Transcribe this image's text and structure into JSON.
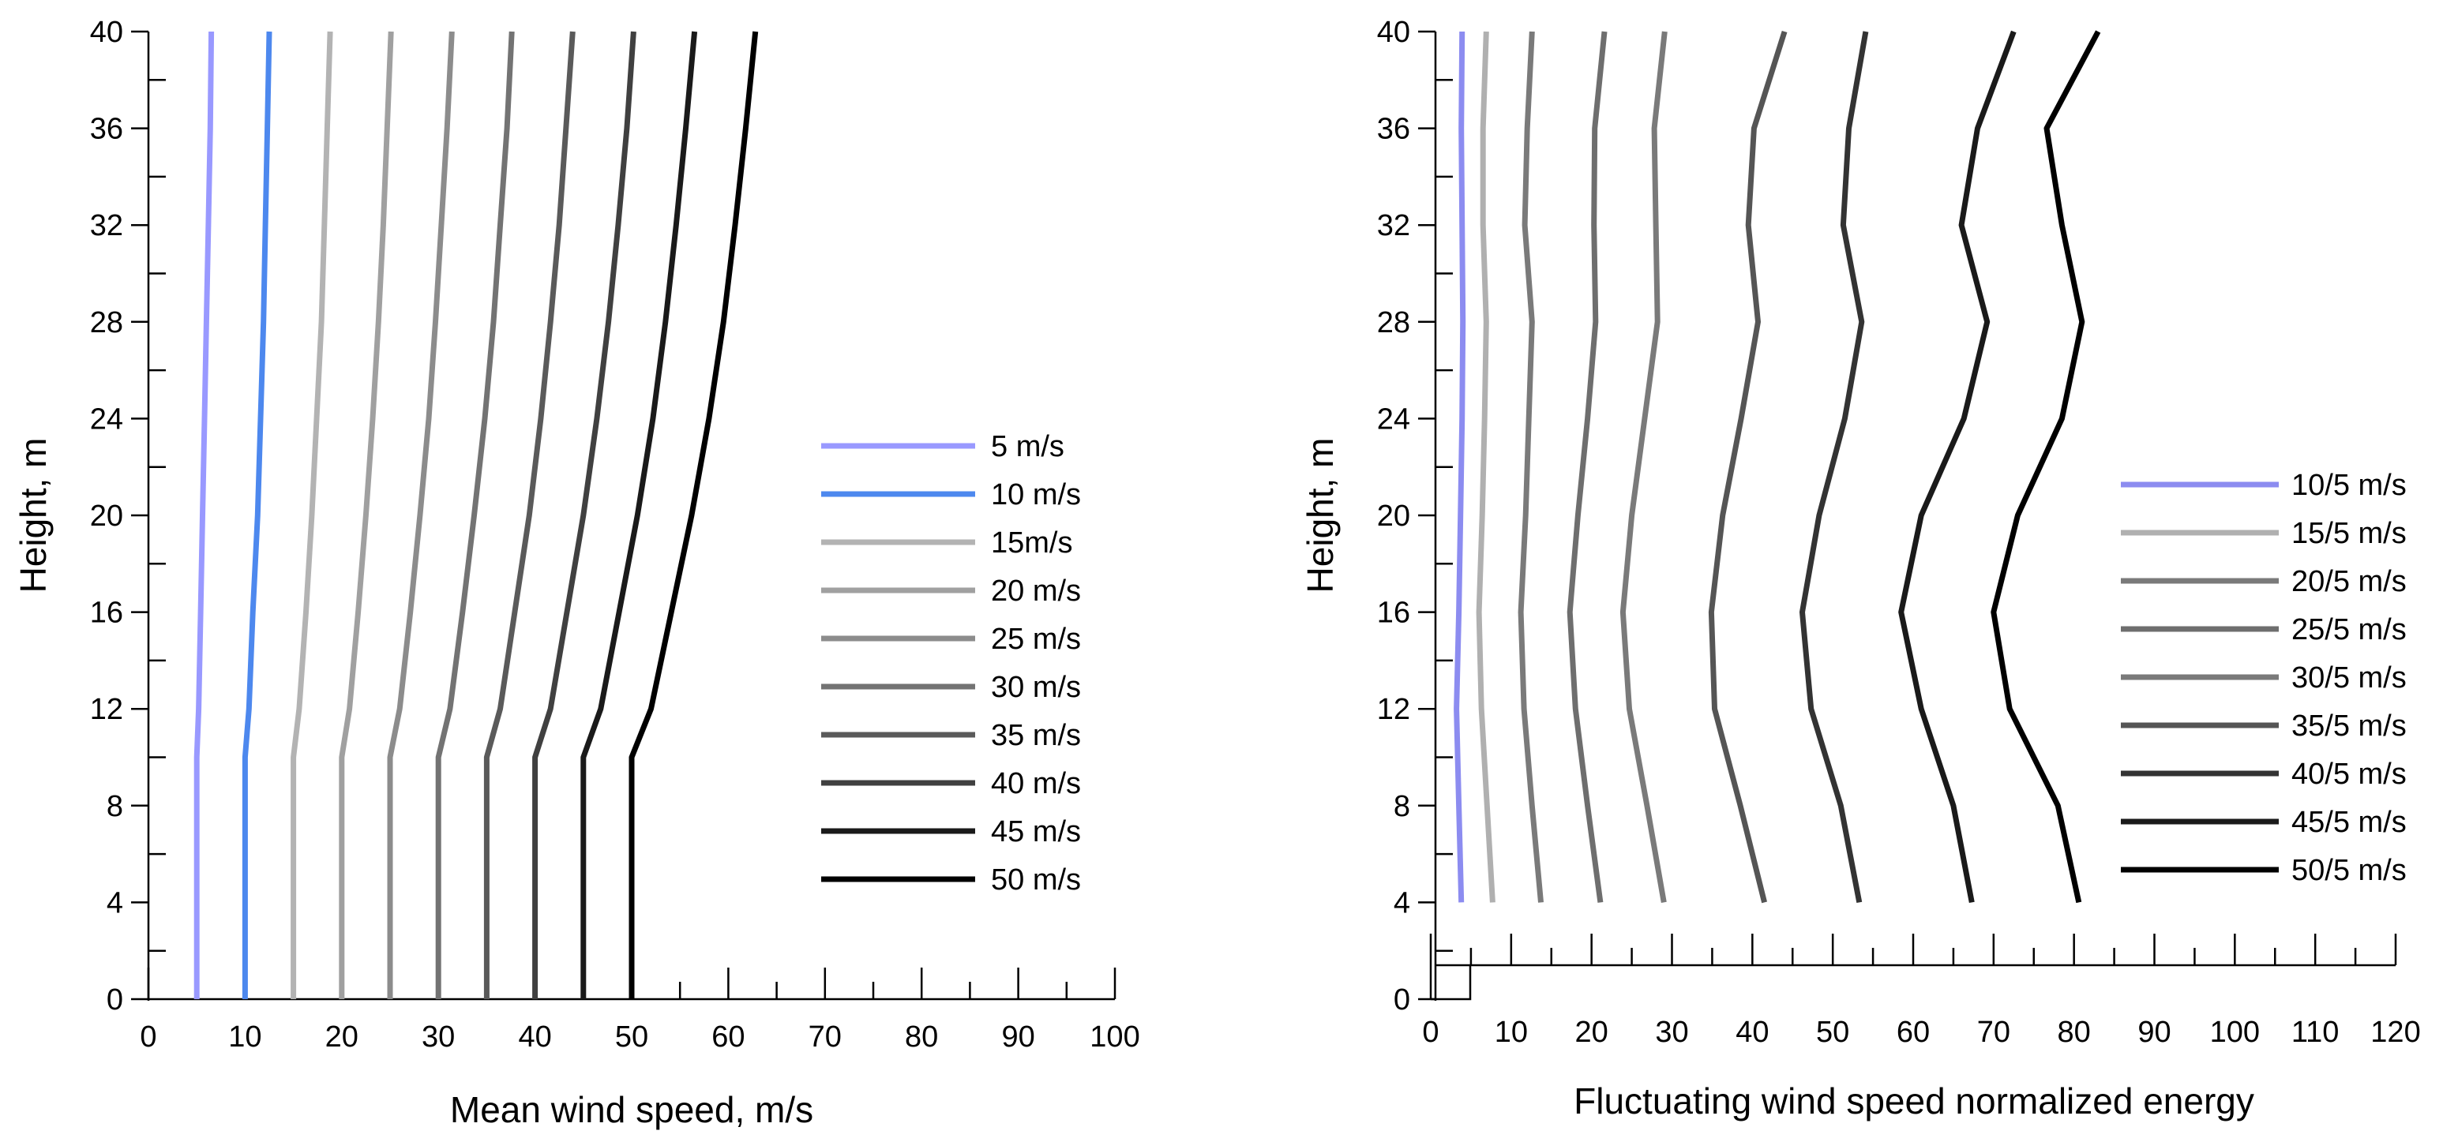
{
  "chart_data": [
    {
      "type": "line",
      "title": "",
      "xlabel": "Mean wind speed, m/s",
      "ylabel": "Height, m",
      "xlim": [
        0,
        100
      ],
      "ylim": [
        0,
        40
      ],
      "xticks": [
        "0",
        "10",
        "20",
        "30",
        "40",
        "50",
        "60",
        "70",
        "80",
        "90",
        "100"
      ],
      "yticks": [
        "0",
        "4",
        "8",
        "12",
        "16",
        "20",
        "24",
        "28",
        "32",
        "36",
        "40"
      ],
      "legend_position": "center-right",
      "series": [
        {
          "name": "5 m/s",
          "color": "#9999ff",
          "points": [
            [
              5,
              0
            ],
            [
              5,
              10
            ],
            [
              5.2,
              12
            ],
            [
              5.4,
              16
            ],
            [
              5.6,
              20
            ],
            [
              5.8,
              24
            ],
            [
              6.0,
              28
            ],
            [
              6.2,
              32
            ],
            [
              6.4,
              36
            ],
            [
              6.5,
              40
            ]
          ]
        },
        {
          "name": "10 m/s",
          "color": "#4d88ee",
          "points": [
            [
              10,
              0
            ],
            [
              10,
              10
            ],
            [
              10.4,
              12
            ],
            [
              10.8,
              16
            ],
            [
              11.3,
              20
            ],
            [
              11.6,
              24
            ],
            [
              11.9,
              28
            ],
            [
              12.1,
              32
            ],
            [
              12.3,
              36
            ],
            [
              12.5,
              40
            ]
          ]
        },
        {
          "name": "15m/s",
          "color": "#b3b3b3",
          "points": [
            [
              15,
              0
            ],
            [
              15,
              10
            ],
            [
              15.6,
              12
            ],
            [
              16.3,
              16
            ],
            [
              16.9,
              20
            ],
            [
              17.4,
              24
            ],
            [
              17.9,
              28
            ],
            [
              18.2,
              32
            ],
            [
              18.5,
              36
            ],
            [
              18.8,
              40
            ]
          ]
        },
        {
          "name": "20 m/s",
          "color": "#a0a0a0",
          "points": [
            [
              20,
              0
            ],
            [
              20,
              10
            ],
            [
              20.8,
              12
            ],
            [
              21.7,
              16
            ],
            [
              22.5,
              20
            ],
            [
              23.2,
              24
            ],
            [
              23.8,
              28
            ],
            [
              24.3,
              32
            ],
            [
              24.7,
              36
            ],
            [
              25.1,
              40
            ]
          ]
        },
        {
          "name": "25 m/s",
          "color": "#8c8c8c",
          "points": [
            [
              25,
              0
            ],
            [
              25,
              10
            ],
            [
              26,
              12
            ],
            [
              27.1,
              16
            ],
            [
              28.1,
              20
            ],
            [
              29,
              24
            ],
            [
              29.7,
              28
            ],
            [
              30.3,
              32
            ],
            [
              30.9,
              36
            ],
            [
              31.4,
              40
            ]
          ]
        },
        {
          "name": "30 m/s",
          "color": "#737373",
          "points": [
            [
              30,
              0
            ],
            [
              30,
              10
            ],
            [
              31.2,
              12
            ],
            [
              32.5,
              16
            ],
            [
              33.7,
              20
            ],
            [
              34.8,
              24
            ],
            [
              35.7,
              28
            ],
            [
              36.4,
              32
            ],
            [
              37.1,
              36
            ],
            [
              37.6,
              40
            ]
          ]
        },
        {
          "name": "35 m/s",
          "color": "#5a5a5a",
          "points": [
            [
              35,
              0
            ],
            [
              35,
              10
            ],
            [
              36.4,
              12
            ],
            [
              37.9,
              16
            ],
            [
              39.4,
              20
            ],
            [
              40.6,
              24
            ],
            [
              41.6,
              28
            ],
            [
              42.5,
              32
            ],
            [
              43.2,
              36
            ],
            [
              43.9,
              40
            ]
          ]
        },
        {
          "name": "40 m/s",
          "color": "#404040",
          "points": [
            [
              40,
              0
            ],
            [
              40,
              10
            ],
            [
              41.6,
              12
            ],
            [
              43.3,
              16
            ],
            [
              45,
              20
            ],
            [
              46.4,
              24
            ],
            [
              47.6,
              28
            ],
            [
              48.6,
              32
            ],
            [
              49.5,
              36
            ],
            [
              50.2,
              40
            ]
          ]
        },
        {
          "name": "45 m/s",
          "color": "#1a1a1a",
          "points": [
            [
              45,
              0
            ],
            [
              45,
              10
            ],
            [
              46.8,
              12
            ],
            [
              48.7,
              16
            ],
            [
              50.6,
              20
            ],
            [
              52.2,
              24
            ],
            [
              53.5,
              28
            ],
            [
              54.6,
              32
            ],
            [
              55.6,
              36
            ],
            [
              56.5,
              40
            ]
          ]
        },
        {
          "name": "50 m/s",
          "color": "#000000",
          "points": [
            [
              50,
              0
            ],
            [
              50,
              10
            ],
            [
              52,
              12
            ],
            [
              54.1,
              16
            ],
            [
              56.2,
              20
            ],
            [
              58,
              24
            ],
            [
              59.5,
              28
            ],
            [
              60.7,
              32
            ],
            [
              61.8,
              36
            ],
            [
              62.8,
              40
            ]
          ]
        }
      ]
    },
    {
      "type": "line",
      "title": "",
      "xlabel": "Fluctuating wind speed normalized energy",
      "ylabel": "Height, m",
      "xlim": [
        0,
        120
      ],
      "ylim": [
        0,
        40
      ],
      "xticks": [
        "0",
        "10",
        "20",
        "30",
        "40",
        "50",
        "60",
        "70",
        "80",
        "90",
        "100",
        "110",
        "120"
      ],
      "yticks": [
        "0",
        "4",
        "8",
        "12",
        "16",
        "20",
        "24",
        "28",
        "32",
        "36",
        "40"
      ],
      "legend_position": "center-right",
      "series": [
        {
          "name": "10/5 m/s",
          "color": "#8c8cf0",
          "points": [
            [
              3.8,
              4
            ],
            [
              3.5,
              8
            ],
            [
              3.2,
              12
            ],
            [
              3.5,
              16
            ],
            [
              3.7,
              20
            ],
            [
              3.9,
              24
            ],
            [
              4.0,
              28
            ],
            [
              3.9,
              32
            ],
            [
              3.8,
              36
            ],
            [
              3.9,
              40
            ]
          ]
        },
        {
          "name": "15/5 m/s",
          "color": "#b0b0b0",
          "points": [
            [
              7.7,
              4
            ],
            [
              7.0,
              8
            ],
            [
              6.3,
              12
            ],
            [
              6.0,
              16
            ],
            [
              6.4,
              20
            ],
            [
              6.7,
              24
            ],
            [
              6.9,
              28
            ],
            [
              6.5,
              32
            ],
            [
              6.5,
              36
            ],
            [
              6.9,
              40
            ]
          ]
        },
        {
          "name": "20/5 m/s",
          "color": "#7a7a7a",
          "points": [
            [
              13.7,
              4
            ],
            [
              12.6,
              8
            ],
            [
              11.6,
              12
            ],
            [
              11.2,
              16
            ],
            [
              11.8,
              20
            ],
            [
              12.2,
              24
            ],
            [
              12.6,
              28
            ],
            [
              11.7,
              32
            ],
            [
              12.0,
              36
            ],
            [
              12.6,
              40
            ]
          ]
        },
        {
          "name": "25/5 m/s",
          "color": "#6e6e6e",
          "points": [
            [
              21.1,
              4
            ],
            [
              19.5,
              8
            ],
            [
              18.0,
              12
            ],
            [
              17.3,
              16
            ],
            [
              18.3,
              20
            ],
            [
              19.5,
              24
            ],
            [
              20.5,
              28
            ],
            [
              20.3,
              32
            ],
            [
              20.4,
              36
            ],
            [
              21.6,
              40
            ]
          ]
        },
        {
          "name": "30/5 m/s",
          "color": "#7a7a7a",
          "points": [
            [
              29.0,
              4
            ],
            [
              26.9,
              8
            ],
            [
              24.7,
              12
            ],
            [
              23.9,
              16
            ],
            [
              25.0,
              20
            ],
            [
              26.6,
              24
            ],
            [
              28.2,
              28
            ],
            [
              28.0,
              32
            ],
            [
              27.8,
              36
            ],
            [
              29.1,
              40
            ]
          ]
        },
        {
          "name": "35/5 m/s",
          "color": "#555555",
          "points": [
            [
              41.5,
              4
            ],
            [
              38.5,
              8
            ],
            [
              35.3,
              12
            ],
            [
              34.9,
              16
            ],
            [
              36.3,
              20
            ],
            [
              38.6,
              24
            ],
            [
              40.7,
              28
            ],
            [
              39.5,
              32
            ],
            [
              40.2,
              36
            ],
            [
              44.0,
              40
            ]
          ]
        },
        {
          "name": "40/5 m/s",
          "color": "#333333",
          "points": [
            [
              53.3,
              4
            ],
            [
              51.0,
              8
            ],
            [
              47.3,
              12
            ],
            [
              46.2,
              16
            ],
            [
              48.3,
              20
            ],
            [
              51.5,
              24
            ],
            [
              53.6,
              28
            ],
            [
              51.3,
              32
            ],
            [
              52.0,
              36
            ],
            [
              54.1,
              40
            ]
          ]
        },
        {
          "name": "45/5 m/s",
          "color": "#1a1a1a",
          "points": [
            [
              67.3,
              4
            ],
            [
              65.0,
              8
            ],
            [
              61.0,
              12
            ],
            [
              58.5,
              16
            ],
            [
              61.0,
              20
            ],
            [
              66.3,
              24
            ],
            [
              69.2,
              28
            ],
            [
              66.0,
              32
            ],
            [
              68.0,
              36
            ],
            [
              72.5,
              40
            ]
          ]
        },
        {
          "name": "50/5 m/s",
          "color": "#000000",
          "points": [
            [
              80.6,
              4
            ],
            [
              78.0,
              8
            ],
            [
              72.0,
              12
            ],
            [
              70.0,
              16
            ],
            [
              73.0,
              20
            ],
            [
              78.5,
              24
            ],
            [
              81.0,
              28
            ],
            [
              78.5,
              32
            ],
            [
              76.6,
              36
            ],
            [
              83.0,
              40
            ]
          ]
        }
      ]
    }
  ]
}
